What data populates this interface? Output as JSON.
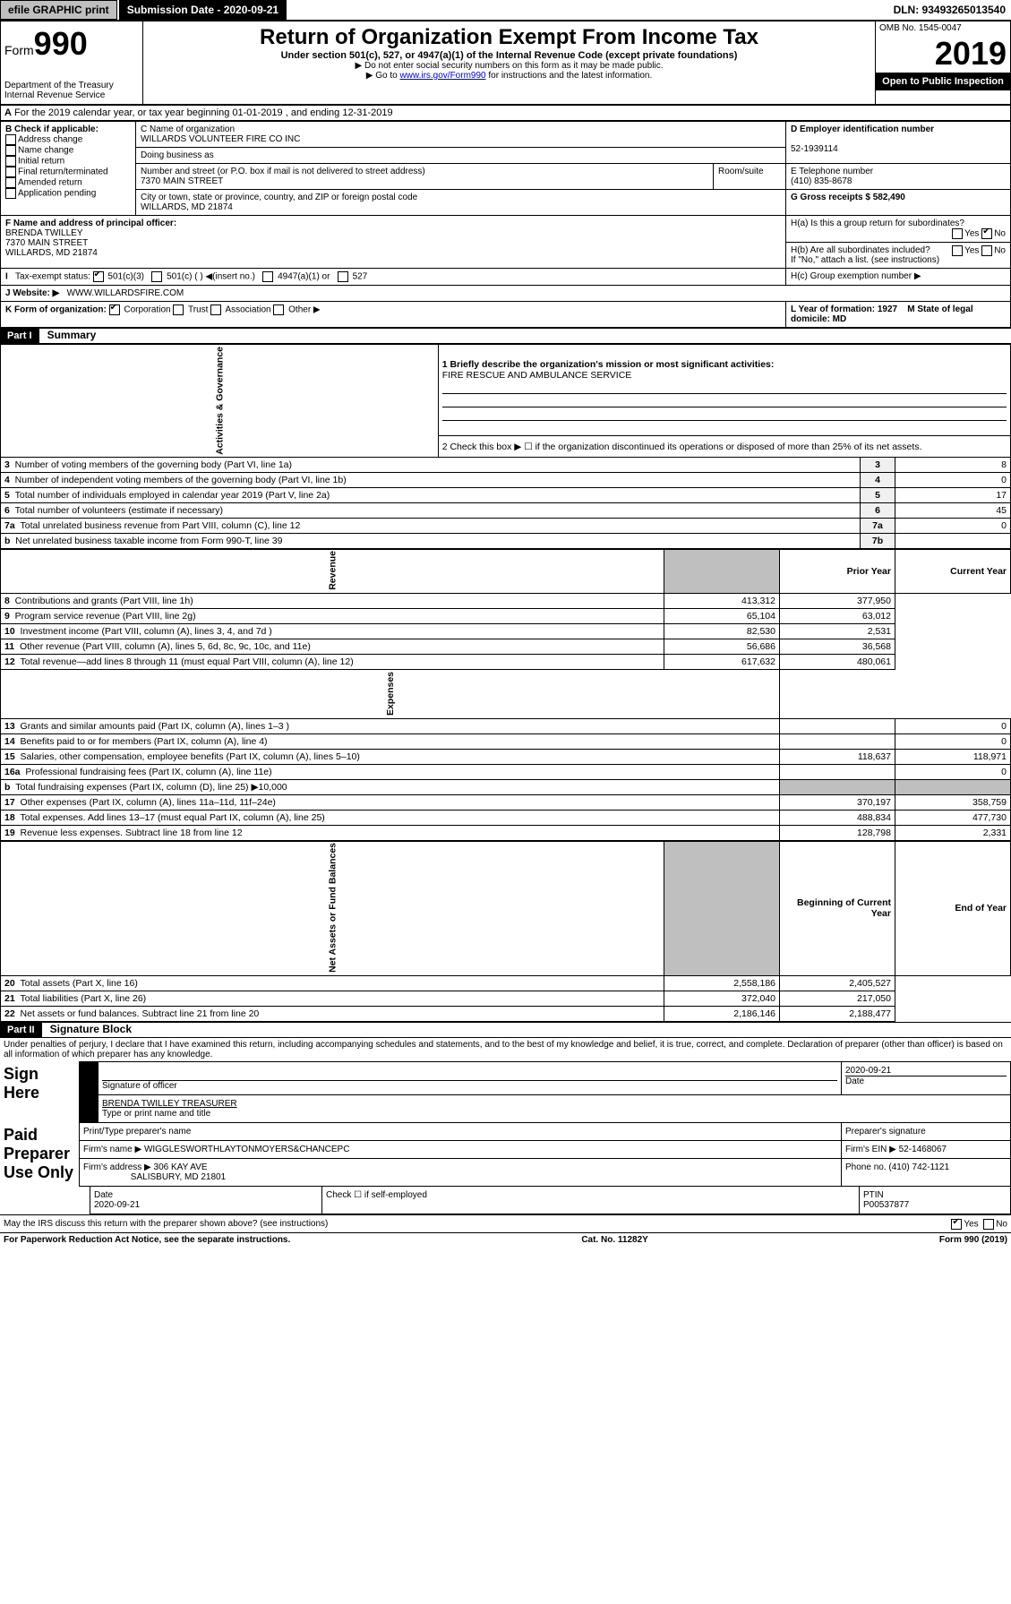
{
  "topbar": {
    "efile": "efile GRAPHIC print",
    "sub_label": "Submission Date - 2020-09-21",
    "dln": "DLN: 93493265013540"
  },
  "header": {
    "form_label": "Form",
    "form_num": "990",
    "dept": "Department of the Treasury",
    "irs": "Internal Revenue Service",
    "title": "Return of Organization Exempt From Income Tax",
    "subtitle": "Under section 501(c), 527, or 4947(a)(1) of the Internal Revenue Code (except private foundations)",
    "note1": "Do not enter social security numbers on this form as it may be made public.",
    "note2_pre": "Go to ",
    "note2_link": "www.irs.gov/Form990",
    "note2_post": " for instructions and the latest information.",
    "omb": "OMB No. 1545-0047",
    "year": "2019",
    "open": "Open to Public Inspection"
  },
  "section_a": {
    "text": "For the 2019 calendar year, or tax year beginning 01-01-2019    , and ending 12-31-2019"
  },
  "section_b": {
    "label": "B Check if applicable:",
    "items": [
      "Address change",
      "Name change",
      "Initial return",
      "Final return/terminated",
      "Amended return",
      "Application pending"
    ]
  },
  "section_c": {
    "label": "C Name of organization",
    "name": "WILLARDS VOLUNTEER FIRE CO INC",
    "dba_label": "Doing business as",
    "addr_label": "Number and street (or P.O. box if mail is not delivered to street address)",
    "room_label": "Room/suite",
    "addr": "7370 MAIN STREET",
    "city_label": "City or town, state or province, country, and ZIP or foreign postal code",
    "city": "WILLARDS, MD  21874"
  },
  "section_d": {
    "label": "D Employer identification number",
    "ein": "52-1939114"
  },
  "section_e": {
    "label": "E Telephone number",
    "phone": "(410) 835-8678"
  },
  "section_g": {
    "label": "G Gross receipts $ 582,490"
  },
  "section_f": {
    "label": "F  Name and address of principal officer:",
    "name": "BRENDA TWILLEY",
    "addr1": "7370 MAIN STREET",
    "addr2": "WILLARDS, MD  21874"
  },
  "section_h": {
    "ha": "H(a)  Is this a group return for subordinates?",
    "hb": "H(b)  Are all subordinates included?",
    "hb_note": "If \"No,\" attach a list. (see instructions)",
    "hc": "H(c)  Group exemption number ▶",
    "yes": "Yes",
    "no": "No"
  },
  "tax_exempt": {
    "label": "Tax-exempt status:",
    "opt1": "501(c)(3)",
    "opt2": "501(c) (   ) ◀(insert no.)",
    "opt3": "4947(a)(1) or",
    "opt4": "527"
  },
  "section_j": {
    "label": "J    Website: ▶",
    "val": "WWW.WILLARDSFIRE.COM"
  },
  "section_k": {
    "label": "K Form of organization:",
    "opts": [
      "Corporation",
      "Trust",
      "Association",
      "Other ▶"
    ]
  },
  "section_l": {
    "label": "L Year of formation: 1927"
  },
  "section_m": {
    "label": "M State of legal domicile: MD"
  },
  "part1": {
    "header": "Part I",
    "title": "Summary",
    "line1_label": "1  Briefly describe the organization's mission or most significant activities:",
    "line1_val": "FIRE RESCUE AND AMBULANCE SERVICE",
    "line2": "2    Check this box ▶ ☐  if the organization discontinued its operations or disposed of more than 25% of its net assets.",
    "vert_gov": "Activities & Governance",
    "vert_rev": "Revenue",
    "vert_exp": "Expenses",
    "vert_net": "Net Assets or Fund Balances",
    "prior_year": "Prior Year",
    "current_year": "Current Year",
    "begin_year": "Beginning of Current Year",
    "end_year": "End of Year",
    "rows_gov": [
      {
        "n": "3",
        "label": "Number of voting members of the governing body (Part VI, line 1a)",
        "box": "3",
        "val": "8"
      },
      {
        "n": "4",
        "label": "Number of independent voting members of the governing body (Part VI, line 1b)",
        "box": "4",
        "val": "0"
      },
      {
        "n": "5",
        "label": "Total number of individuals employed in calendar year 2019 (Part V, line 2a)",
        "box": "5",
        "val": "17"
      },
      {
        "n": "6",
        "label": "Total number of volunteers (estimate if necessary)",
        "box": "6",
        "val": "45"
      },
      {
        "n": "7a",
        "label": "Total unrelated business revenue from Part VIII, column (C), line 12",
        "box": "7a",
        "val": "0"
      },
      {
        "n": "b",
        "label": "Net unrelated business taxable income from Form 990-T, line 39",
        "box": "7b",
        "val": ""
      }
    ],
    "rows_rev": [
      {
        "n": "8",
        "label": "Contributions and grants (Part VIII, line 1h)",
        "p": "413,312",
        "c": "377,950"
      },
      {
        "n": "9",
        "label": "Program service revenue (Part VIII, line 2g)",
        "p": "65,104",
        "c": "63,012"
      },
      {
        "n": "10",
        "label": "Investment income (Part VIII, column (A), lines 3, 4, and 7d )",
        "p": "82,530",
        "c": "2,531"
      },
      {
        "n": "11",
        "label": "Other revenue (Part VIII, column (A), lines 5, 6d, 8c, 9c, 10c, and 11e)",
        "p": "56,686",
        "c": "36,568"
      },
      {
        "n": "12",
        "label": "Total revenue—add lines 8 through 11 (must equal Part VIII, column (A), line 12)",
        "p": "617,632",
        "c": "480,061"
      }
    ],
    "rows_exp": [
      {
        "n": "13",
        "label": "Grants and similar amounts paid (Part IX, column (A), lines 1–3 )",
        "p": "",
        "c": "0"
      },
      {
        "n": "14",
        "label": "Benefits paid to or for members (Part IX, column (A), line 4)",
        "p": "",
        "c": "0"
      },
      {
        "n": "15",
        "label": "Salaries, other compensation, employee benefits (Part IX, column (A), lines 5–10)",
        "p": "118,637",
        "c": "118,971"
      },
      {
        "n": "16a",
        "label": "Professional fundraising fees (Part IX, column (A), line 11e)",
        "p": "",
        "c": "0"
      },
      {
        "n": "b",
        "label": "Total fundraising expenses (Part IX, column (D), line 25) ▶10,000",
        "p": "",
        "c": ""
      },
      {
        "n": "17",
        "label": "Other expenses (Part IX, column (A), lines 11a–11d, 11f–24e)",
        "p": "370,197",
        "c": "358,759"
      },
      {
        "n": "18",
        "label": "Total expenses. Add lines 13–17 (must equal Part IX, column (A), line 25)",
        "p": "488,834",
        "c": "477,730"
      },
      {
        "n": "19",
        "label": "Revenue less expenses. Subtract line 18 from line 12",
        "p": "128,798",
        "c": "2,331"
      }
    ],
    "rows_net": [
      {
        "n": "20",
        "label": "Total assets (Part X, line 16)",
        "p": "2,558,186",
        "c": "2,405,527"
      },
      {
        "n": "21",
        "label": "Total liabilities (Part X, line 26)",
        "p": "372,040",
        "c": "217,050"
      },
      {
        "n": "22",
        "label": "Net assets or fund balances. Subtract line 21 from line 20",
        "p": "2,186,146",
        "c": "2,188,477"
      }
    ]
  },
  "part2": {
    "header": "Part II",
    "title": "Signature Block",
    "decl": "Under penalties of perjury, I declare that I have examined this return, including accompanying schedules and statements, and to the best of my knowledge and belief, it is true, correct, and complete. Declaration of preparer (other than officer) is based on all information of which preparer has any knowledge.",
    "sign_here": "Sign Here",
    "sig_officer": "Signature of officer",
    "sig_date": "2020-09-21",
    "date_label": "Date",
    "officer_name": "BRENDA TWILLEY TREASURER",
    "type_name": "Type or print name and title",
    "paid_prep": "Paid Preparer Use Only",
    "prep_name_label": "Print/Type preparer's name",
    "prep_sig_label": "Preparer's signature",
    "prep_date_label": "Date",
    "prep_date": "2020-09-21",
    "check_label": "Check ☐ if self-employed",
    "ptin_label": "PTIN",
    "ptin": "P00537877",
    "firm_name_label": "Firm's name     ▶",
    "firm_name": "WIGGLESWORTHLAYTONMOYERS&CHANCEPC",
    "firm_ein_label": "Firm's EIN ▶",
    "firm_ein": "52-1468067",
    "firm_addr_label": "Firm's address ▶",
    "firm_addr1": "306 KAY AVE",
    "firm_addr2": "SALISBURY, MD  21801",
    "firm_phone_label": "Phone no.",
    "firm_phone": "(410) 742-1121",
    "discuss": "May the IRS discuss this return with the preparer shown above? (see instructions)",
    "yes": "Yes",
    "no": "No"
  },
  "footer": {
    "left": "For Paperwork Reduction Act Notice, see the separate instructions.",
    "mid": "Cat. No. 11282Y",
    "right": "Form 990 (2019)"
  }
}
